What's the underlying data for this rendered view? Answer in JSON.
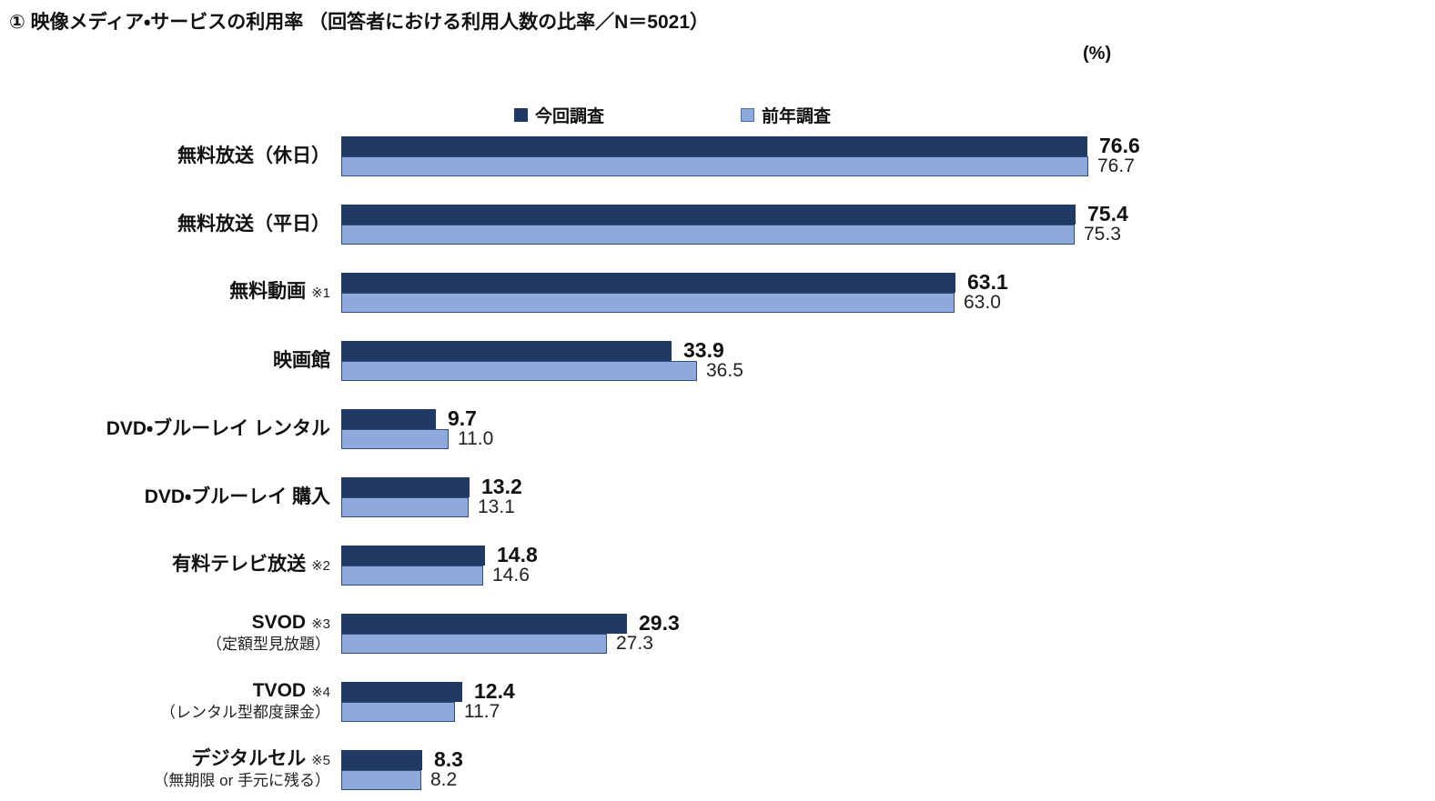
{
  "title": "① 映像メディア・サービスの利用率 （回答者における利用人数の比率／N＝5021）",
  "unit_label": "(%)",
  "legend": {
    "current_label": "今回調査",
    "previous_label": "前年調査"
  },
  "colors": {
    "current": "#203a63",
    "previous": "#8ea9db",
    "previous_border": "#2f4e7e"
  },
  "chart_data": {
    "type": "bar",
    "orientation": "horizontal",
    "title": "映像メディア・サービスの利用率",
    "subtitle": "回答者における利用人数の比率",
    "n": 5021,
    "value_unit": "%",
    "xlim": [
      0,
      80
    ],
    "grid": false,
    "legend_position": "top",
    "categories": [
      {
        "label": "無料放送（休日）",
        "note": "",
        "sublabel": ""
      },
      {
        "label": "無料放送（平日）",
        "note": "",
        "sublabel": ""
      },
      {
        "label": "無料動画",
        "note": "※1",
        "sublabel": ""
      },
      {
        "label": "映画館",
        "note": "",
        "sublabel": ""
      },
      {
        "label": "DVD・ブルーレイ レンタル",
        "note": "",
        "sublabel": ""
      },
      {
        "label": "DVD・ブルーレイ 購入",
        "note": "",
        "sublabel": ""
      },
      {
        "label": "有料テレビ放送",
        "note": "※2",
        "sublabel": ""
      },
      {
        "label": "SVOD",
        "note": "※3",
        "sublabel": "（定額型見放題）"
      },
      {
        "label": "TVOD",
        "note": "※4",
        "sublabel": "（レンタル型都度課金）"
      },
      {
        "label": "デジタルセル",
        "note": "※5",
        "sublabel": "（無期限 or 手元に残る）"
      }
    ],
    "series": [
      {
        "name": "今回調査",
        "values": [
          76.6,
          75.4,
          63.1,
          33.9,
          9.7,
          13.2,
          14.8,
          29.3,
          12.4,
          8.3
        ]
      },
      {
        "name": "前年調査",
        "values": [
          76.7,
          75.3,
          63.0,
          36.5,
          11.0,
          13.1,
          14.6,
          27.3,
          11.7,
          8.2
        ]
      }
    ]
  }
}
